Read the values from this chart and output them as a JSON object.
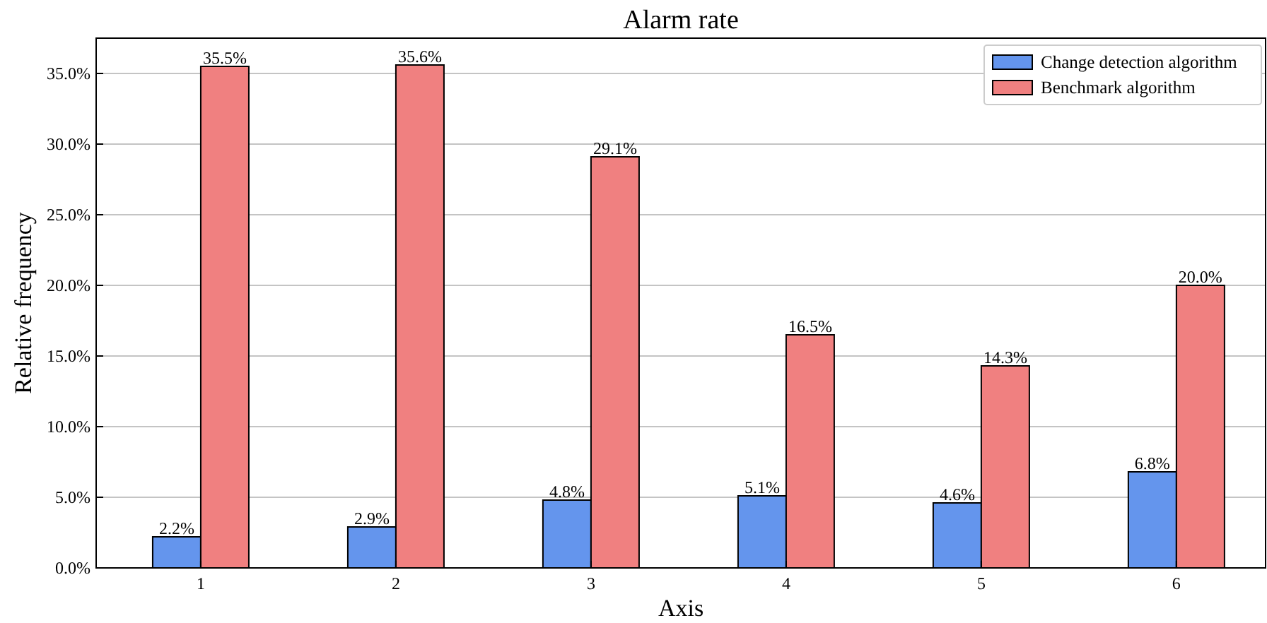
{
  "chart_data": {
    "type": "bar",
    "title": "Alarm rate",
    "xlabel": "Axis",
    "ylabel": "Relative frequency",
    "categories": [
      "1",
      "2",
      "3",
      "4",
      "5",
      "6"
    ],
    "series": [
      {
        "name": "Change detection algorithm",
        "color": "#6495ed",
        "values": [
          2.2,
          2.9,
          4.8,
          5.1,
          4.6,
          6.8
        ],
        "value_labels": [
          "2.2%",
          "2.9%",
          "4.8%",
          "5.1%",
          "4.6%",
          "6.8%"
        ]
      },
      {
        "name": "Benchmark algorithm",
        "color": "#f08080",
        "values": [
          35.5,
          35.6,
          29.1,
          16.5,
          14.3,
          20.0
        ],
        "value_labels": [
          "35.5%",
          "35.6%",
          "29.1%",
          "16.5%",
          "14.3%",
          "20.0%"
        ]
      }
    ],
    "ylim": [
      0,
      37.5
    ],
    "yticks": [
      {
        "value": 0,
        "label": "0.0%"
      },
      {
        "value": 5,
        "label": "5.0%"
      },
      {
        "value": 10,
        "label": "10.0%"
      },
      {
        "value": 15,
        "label": "15.0%"
      },
      {
        "value": 20,
        "label": "20.0%"
      },
      {
        "value": 25,
        "label": "25.0%"
      },
      {
        "value": 30,
        "label": "30.0%"
      },
      {
        "value": 35,
        "label": "35.0%"
      }
    ],
    "grid": "y",
    "legend": "top right"
  }
}
